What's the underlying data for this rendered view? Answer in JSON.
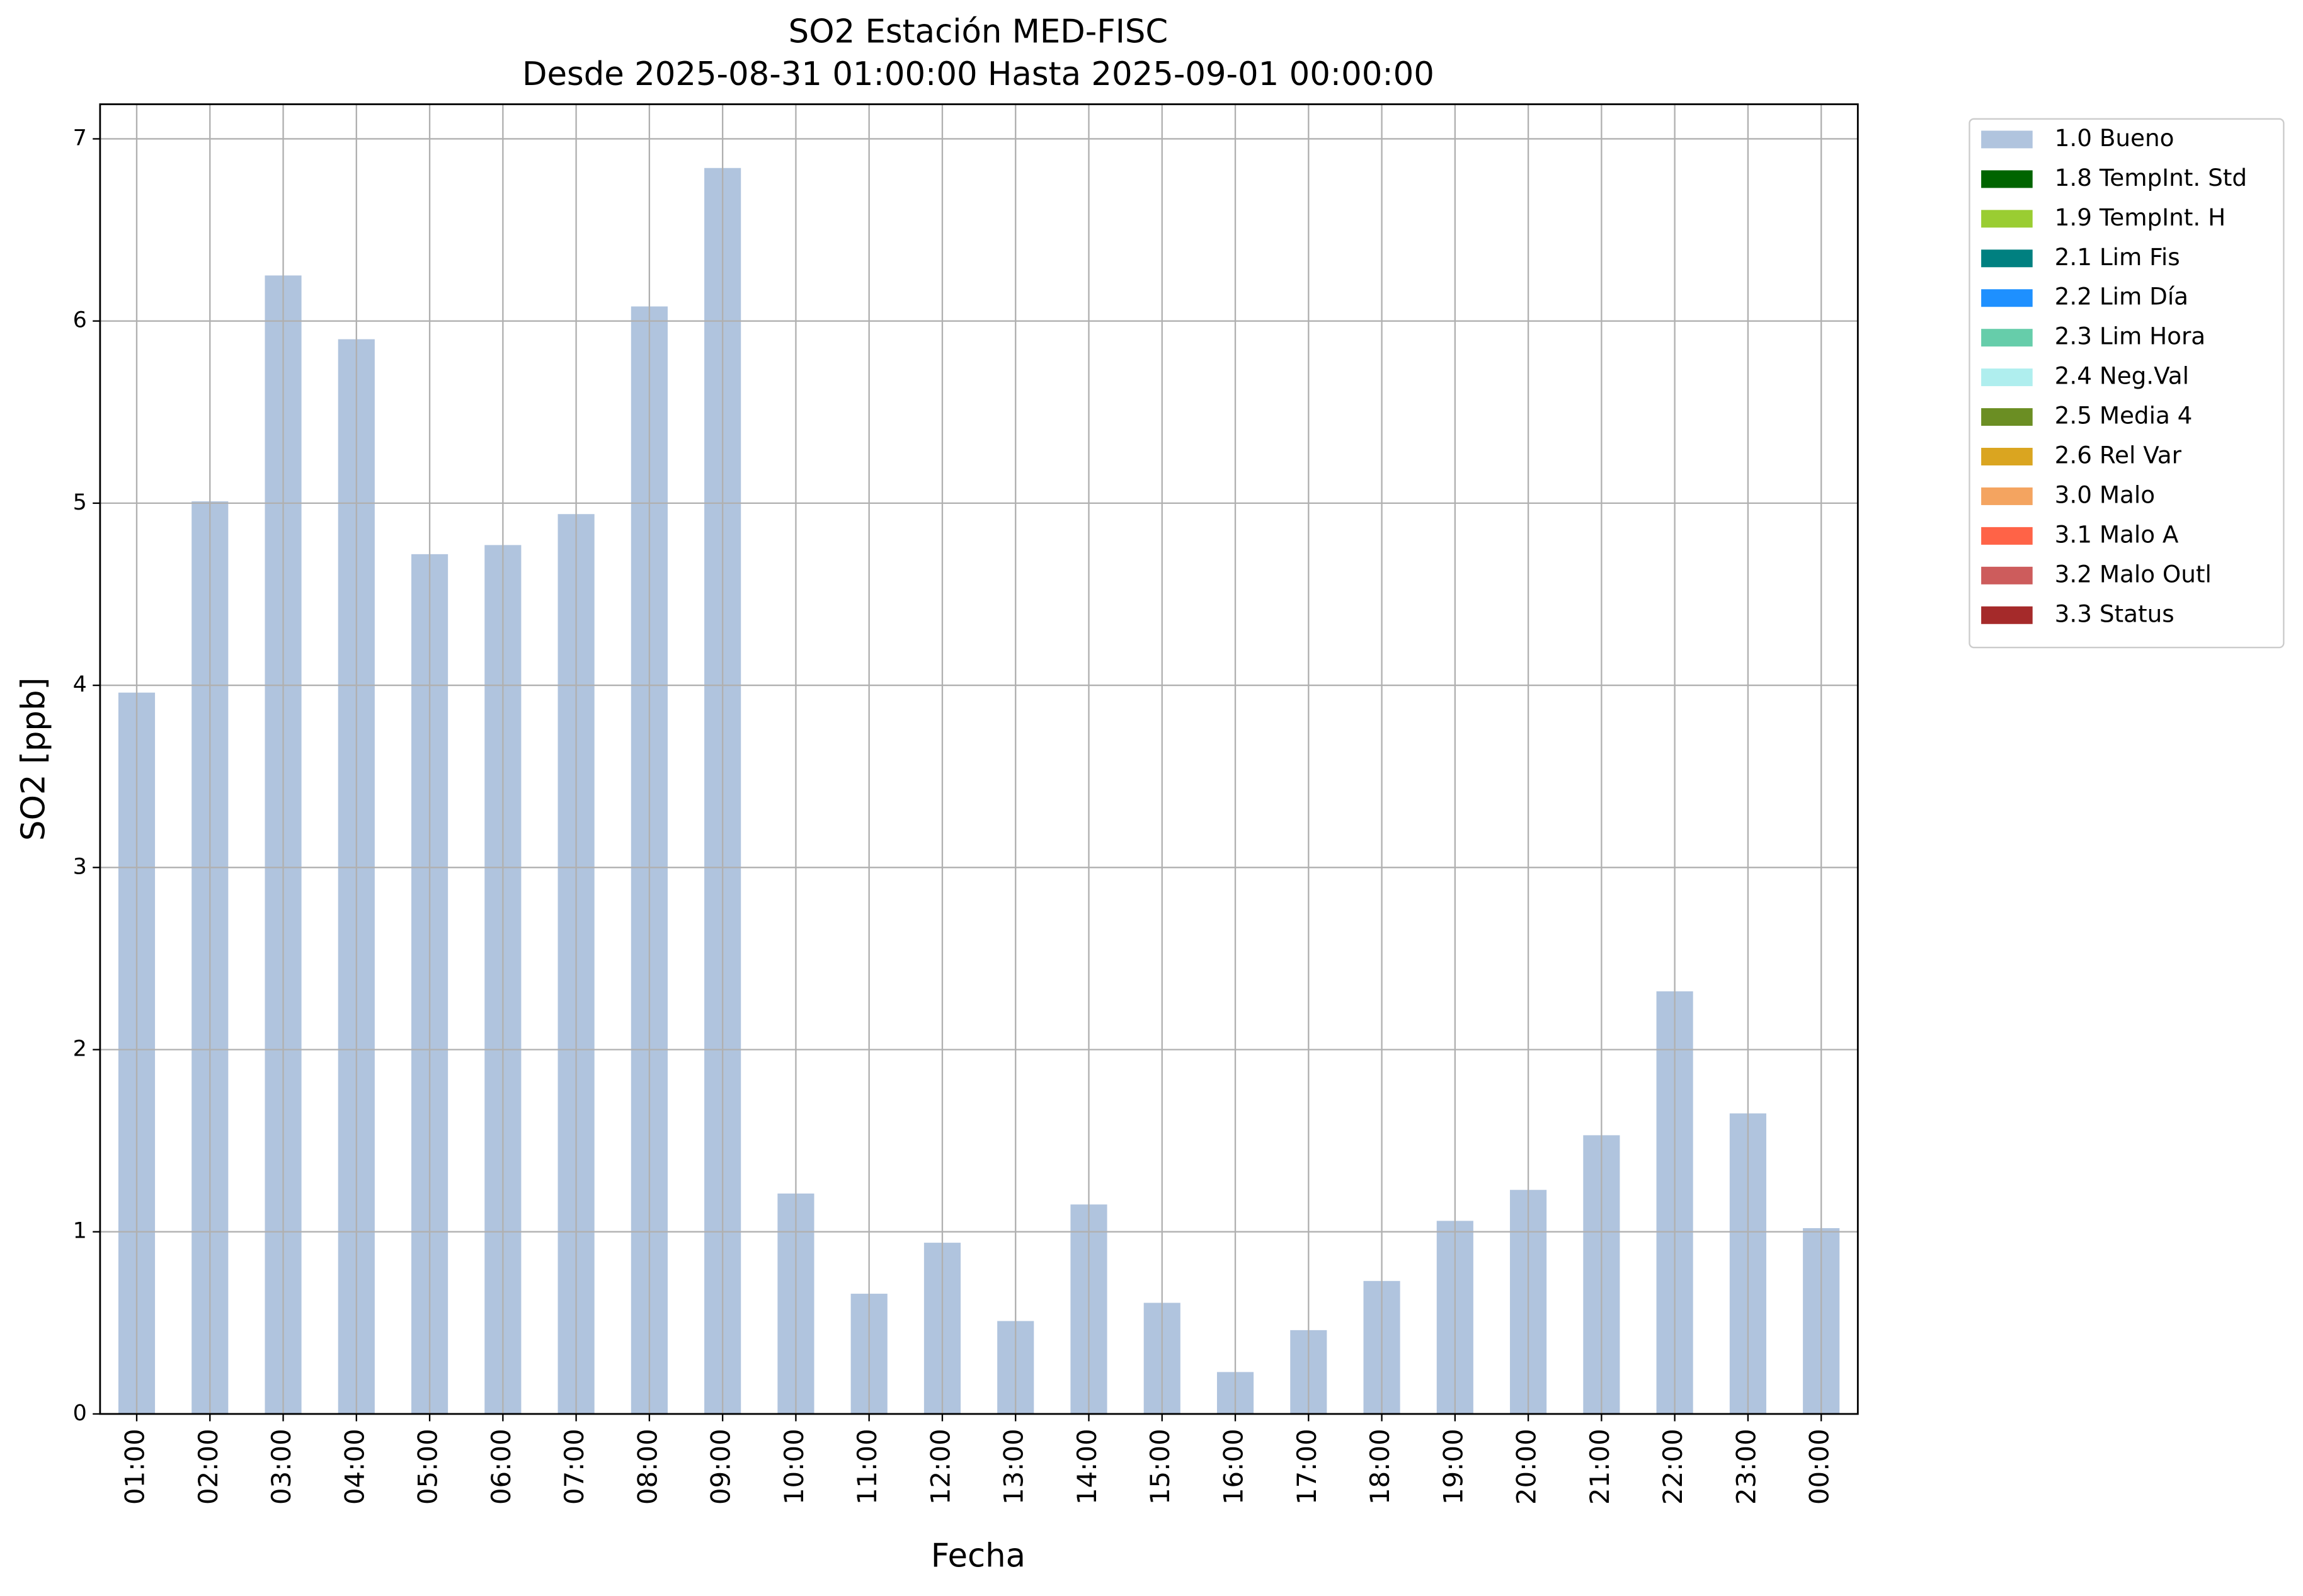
{
  "chart_data": {
    "type": "stacked-bar",
    "title": "SO2 Estación MED-FISC",
    "subtitle": "Desde 2025-08-31 01:00:00 Hasta 2025-09-01 00:00:00",
    "x_label": "Fecha",
    "y_label": "SO2 [ppb]",
    "categories": [
      "01:00",
      "02:00",
      "03:00",
      "04:00",
      "05:00",
      "06:00",
      "07:00",
      "08:00",
      "09:00",
      "10:00",
      "11:00",
      "12:00",
      "13:00",
      "14:00",
      "15:00",
      "16:00",
      "17:00",
      "18:00",
      "19:00",
      "20:00",
      "21:00",
      "22:00",
      "23:00",
      "00:00"
    ],
    "series": [
      {
        "name": "1.0 Bueno",
        "color": "#b0c4de",
        "values": [
          3.96,
          5.01,
          6.25,
          5.9,
          4.72,
          4.77,
          4.94,
          6.08,
          6.84,
          1.21,
          0.66,
          0.94,
          0.51,
          1.15,
          0.61,
          0.23,
          0.46,
          0.73,
          1.06,
          1.23,
          1.53,
          2.32,
          1.65,
          1.02
        ]
      },
      {
        "name": "1.8 TempInt. Std",
        "color": "#006400",
        "values": [
          0,
          0,
          0,
          0,
          0,
          0,
          0,
          0,
          0,
          0,
          0,
          0,
          0,
          0,
          0,
          0,
          0,
          0,
          0,
          0,
          0,
          0,
          0,
          0
        ]
      },
      {
        "name": "1.9 TempInt. H",
        "color": "#9acd32",
        "values": [
          0,
          0,
          0,
          0,
          0,
          0,
          0,
          0,
          0,
          0,
          0,
          0,
          0,
          0,
          0,
          0,
          0,
          0,
          0,
          0,
          0,
          0,
          0,
          0
        ]
      },
      {
        "name": "2.1 Lim Fis",
        "color": "#008080",
        "values": [
          0,
          0,
          0,
          0,
          0,
          0,
          0,
          0,
          0,
          0,
          0,
          0,
          0,
          0,
          0,
          0,
          0,
          0,
          0,
          0,
          0,
          0,
          0,
          0
        ]
      },
      {
        "name": "2.2 Lim Día",
        "color": "#1e90ff",
        "values": [
          0,
          0,
          0,
          0,
          0,
          0,
          0,
          0,
          0,
          0,
          0,
          0,
          0,
          0,
          0,
          0,
          0,
          0,
          0,
          0,
          0,
          0,
          0,
          0
        ]
      },
      {
        "name": "2.3 Lim Hora",
        "color": "#66cdaa",
        "values": [
          0,
          0,
          0,
          0,
          0,
          0,
          0,
          0,
          0,
          0,
          0,
          0,
          0,
          0,
          0,
          0,
          0,
          0,
          0,
          0,
          0,
          0,
          0,
          0
        ]
      },
      {
        "name": "2.4 Neg.Val",
        "color": "#afeeee",
        "values": [
          0,
          0,
          0,
          0,
          0,
          0,
          0,
          0,
          0,
          0,
          0,
          0,
          0,
          0,
          0,
          0,
          0,
          0,
          0,
          0,
          0,
          0,
          0,
          0
        ]
      },
      {
        "name": "2.5 Media 4",
        "color": "#6b8e23",
        "values": [
          0,
          0,
          0,
          0,
          0,
          0,
          0,
          0,
          0,
          0,
          0,
          0,
          0,
          0,
          0,
          0,
          0,
          0,
          0,
          0,
          0,
          0,
          0,
          0
        ]
      },
      {
        "name": "2.6 Rel Var",
        "color": "#daa520",
        "values": [
          0,
          0,
          0,
          0,
          0,
          0,
          0,
          0,
          0,
          0,
          0,
          0,
          0,
          0,
          0,
          0,
          0,
          0,
          0,
          0,
          0,
          0,
          0,
          0
        ]
      },
      {
        "name": "3.0 Malo",
        "color": "#f4a460",
        "values": [
          0,
          0,
          0,
          0,
          0,
          0,
          0,
          0,
          0,
          0,
          0,
          0,
          0,
          0,
          0,
          0,
          0,
          0,
          0,
          0,
          0,
          0,
          0,
          0
        ]
      },
      {
        "name": "3.1 Malo A",
        "color": "#ff6347",
        "values": [
          0,
          0,
          0,
          0,
          0,
          0,
          0,
          0,
          0,
          0,
          0,
          0,
          0,
          0,
          0,
          0,
          0,
          0,
          0,
          0,
          0,
          0,
          0,
          0
        ]
      },
      {
        "name": "3.2 Malo Outl",
        "color": "#cd5c5c",
        "values": [
          0,
          0,
          0,
          0,
          0,
          0,
          0,
          0,
          0,
          0,
          0,
          0,
          0,
          0,
          0,
          0,
          0,
          0,
          0,
          0,
          0,
          0,
          0,
          0
        ]
      },
      {
        "name": "3.3 Status",
        "color": "#a52a2a",
        "values": [
          0,
          0,
          0,
          0,
          0,
          0,
          0,
          0,
          0,
          0,
          0,
          0,
          0,
          0,
          0,
          0,
          0,
          0,
          0,
          0,
          0,
          0,
          0,
          0
        ]
      }
    ],
    "ylim": [
      0,
      7.19
    ],
    "yticks": [
      0,
      1,
      2,
      3,
      4,
      5,
      6,
      7
    ],
    "grid": true,
    "legend": "outside-right"
  }
}
